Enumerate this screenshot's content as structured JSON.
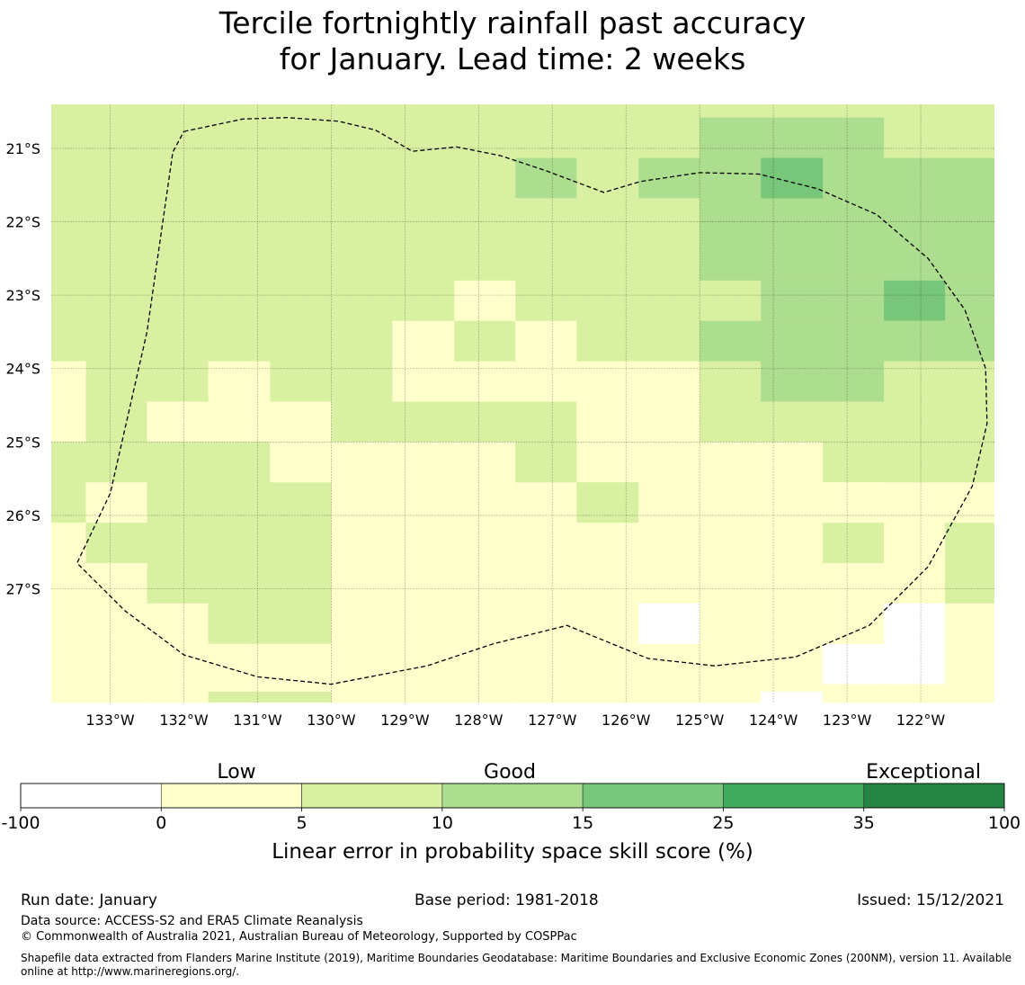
{
  "title": {
    "line1": "Tercile fortnightly rainfall past accuracy",
    "line2": "for January. Lead time: 2 weeks"
  },
  "chart_data": {
    "type": "heatmap",
    "title": "Tercile fortnightly rainfall past accuracy for January. Lead time: 2 weeks",
    "xlabel": "",
    "ylabel": "",
    "lon_range": [
      -133.8,
      -121.0
    ],
    "lat_range": [
      -20.4,
      -28.55
    ],
    "x_ticks": [
      {
        "value": -133,
        "label": "133°W"
      },
      {
        "value": -132,
        "label": "132°W"
      },
      {
        "value": -131,
        "label": "131°W"
      },
      {
        "value": -130,
        "label": "130°W"
      },
      {
        "value": -129,
        "label": "129°W"
      },
      {
        "value": -128,
        "label": "128°W"
      },
      {
        "value": -127,
        "label": "127°W"
      },
      {
        "value": -126,
        "label": "126°W"
      },
      {
        "value": -125,
        "label": "125°W"
      },
      {
        "value": -124,
        "label": "124°W"
      },
      {
        "value": -123,
        "label": "123°W"
      },
      {
        "value": -122,
        "label": "122°W"
      }
    ],
    "y_ticks": [
      {
        "value": -21,
        "label": "21°S"
      },
      {
        "value": -22,
        "label": "22°S"
      },
      {
        "value": -23,
        "label": "23°S"
      },
      {
        "value": -24,
        "label": "24°S"
      },
      {
        "value": -25,
        "label": "25°S"
      },
      {
        "value": -26,
        "label": "26°S"
      },
      {
        "value": -27,
        "label": "27°S"
      }
    ],
    "grid": true,
    "note": "Cells are 5/6 degree squares; value codes: 0 = -100 to 0, 1 = 0-5, 2 = 5-10, 3 = 10-15, 4 = 15-25, 5 = 25-35, 6 = 35-100",
    "cell_size_deg": 0.8333,
    "grid_origin": {
      "lon": -133.8,
      "lat": -20.4
    },
    "cells": [
      [
        2,
        2,
        2,
        2,
        2,
        2,
        2,
        2,
        2,
        2,
        2,
        2,
        2,
        2,
        2,
        2,
        2,
        2,
        2,
        2,
        2,
        2,
        2,
        2,
        2,
        2,
        2,
        2,
        2,
        2,
        2,
        2,
        2,
        2,
        2,
        2,
        2,
        2,
        2,
        2,
        2,
        2,
        2,
        2,
        2,
        2,
        2,
        2,
        2,
        2,
        2,
        2,
        2,
        2,
        2,
        2,
        2,
        2,
        2,
        2,
        2,
        2,
        2,
        2,
        2,
        2,
        2,
        2,
        2,
        2,
        2,
        2,
        2,
        2,
        2,
        2,
        2,
        2,
        2,
        2
      ],
      [
        2,
        2,
        2,
        2,
        2,
        2,
        2,
        2,
        2,
        2,
        2,
        2,
        2,
        2,
        2,
        2,
        2,
        2,
        2,
        2,
        2,
        2,
        2,
        2,
        2,
        2,
        2,
        2,
        2,
        2,
        2,
        2,
        2,
        2,
        2,
        2,
        2,
        2,
        2,
        2,
        2,
        2,
        2,
        2,
        2,
        2,
        2,
        2,
        2,
        2,
        2,
        2,
        2,
        2,
        2,
        2,
        2,
        2,
        2,
        2,
        2,
        2,
        2,
        2,
        2,
        2,
        2,
        2,
        2,
        2,
        2,
        2,
        2,
        2,
        2,
        2,
        2,
        2,
        2,
        2
      ]
    ],
    "cell_rects": [
      {
        "lon0": -133.8,
        "lon1": -121.0,
        "lat0": -20.4,
        "lat1": -28.55,
        "v": 2
      },
      {
        "lon0": -125.0,
        "lon1": -122.5,
        "lat0": -20.58,
        "lat1": -21.13,
        "v": 3
      },
      {
        "lon0": -125.0,
        "lon1": -121.0,
        "lat0": -21.13,
        "lat1": -22.8,
        "v": 3
      },
      {
        "lon0": -127.5,
        "lon1": -126.67,
        "lat0": -21.13,
        "lat1": -21.68,
        "v": 3
      },
      {
        "lon0": -125.83,
        "lon1": -125.0,
        "lat0": -21.13,
        "lat1": -21.68,
        "v": 3
      },
      {
        "lon0": -124.17,
        "lon1": -123.33,
        "lat0": -21.13,
        "lat1": -21.68,
        "v": 4
      },
      {
        "lon0": -124.17,
        "lon1": -121.0,
        "lat0": -22.8,
        "lat1": -23.35,
        "v": 3
      },
      {
        "lon0": -122.5,
        "lon1": -121.67,
        "lat0": -22.8,
        "lat1": -23.35,
        "v": 4
      },
      {
        "lon0": -125.0,
        "lon1": -121.0,
        "lat0": -23.35,
        "lat1": -23.9,
        "v": 3
      },
      {
        "lon0": -124.17,
        "lon1": -122.5,
        "lat0": -23.9,
        "lat1": -24.45,
        "v": 3
      },
      {
        "lon0": -128.33,
        "lon1": -127.5,
        "lat0": -22.8,
        "lat1": -23.35,
        "v": 1
      },
      {
        "lon0": -129.17,
        "lon1": -128.33,
        "lat0": -23.35,
        "lat1": -23.9,
        "v": 1
      },
      {
        "lon0": -127.5,
        "lon1": -126.67,
        "lat0": -23.35,
        "lat1": -23.9,
        "v": 1
      },
      {
        "lon0": -129.17,
        "lon1": -125.0,
        "lat0": -23.9,
        "lat1": -24.45,
        "v": 1
      },
      {
        "lon0": -133.8,
        "lon1": -133.33,
        "lat0": -23.9,
        "lat1": -25.0,
        "v": 1
      },
      {
        "lon0": -131.67,
        "lon1": -130.83,
        "lat0": -23.9,
        "lat1": -24.45,
        "v": 1
      },
      {
        "lon0": -132.5,
        "lon1": -130.0,
        "lat0": -24.45,
        "lat1": -25.0,
        "v": 1
      },
      {
        "lon0": -126.67,
        "lon1": -125.0,
        "lat0": -24.45,
        "lat1": -25.0,
        "v": 1
      },
      {
        "lon0": -130.83,
        "lon1": -130.0,
        "lat0": -25.0,
        "lat1": -25.55,
        "v": 1
      },
      {
        "lon0": -130.0,
        "lon1": -127.5,
        "lat0": -25.0,
        "lat1": -28.55,
        "v": 1
      },
      {
        "lon0": -126.67,
        "lon1": -123.33,
        "lat0": -25.0,
        "lat1": -25.55,
        "v": 1
      },
      {
        "lon0": -127.5,
        "lon1": -121.0,
        "lat0": -25.55,
        "lat1": -28.55,
        "v": 1
      },
      {
        "lon0": -133.33,
        "lon1": -132.5,
        "lat0": -25.55,
        "lat1": -26.1,
        "v": 1
      },
      {
        "lon0": -123.33,
        "lon1": -122.5,
        "lat0": -25.55,
        "lat1": -26.1,
        "v": 1
      },
      {
        "lon0": -133.8,
        "lon1": -133.33,
        "lat0": -26.1,
        "lat1": -28.55,
        "v": 1
      },
      {
        "lon0": -133.33,
        "lon1": -132.5,
        "lat0": -26.65,
        "lat1": -28.55,
        "v": 1
      },
      {
        "lon0": -132.5,
        "lon1": -131.67,
        "lat0": -27.2,
        "lat1": -28.55,
        "v": 1
      },
      {
        "lon0": -131.67,
        "lon1": -130.0,
        "lat0": -27.75,
        "lat1": -28.55,
        "v": 1
      },
      {
        "lon0": -127.5,
        "lon1": -126.67,
        "lat0": -25.0,
        "lat1": -25.55,
        "v": 2
      },
      {
        "lon0": -126.67,
        "lon1": -125.83,
        "lat0": -25.55,
        "lat1": -26.1,
        "v": 2
      },
      {
        "lon0": -123.33,
        "lon1": -122.5,
        "lat0": -26.1,
        "lat1": -26.65,
        "v": 2
      },
      {
        "lon0": -121.67,
        "lon1": -121.0,
        "lat0": -26.1,
        "lat1": -27.2,
        "v": 2
      },
      {
        "lon0": -125.83,
        "lon1": -125.0,
        "lat0": -27.2,
        "lat1": -27.75,
        "v": 0
      },
      {
        "lon0": -122.5,
        "lon1": -121.67,
        "lat0": -27.2,
        "lat1": -28.3,
        "v": 0
      },
      {
        "lon0": -123.33,
        "lon1": -122.5,
        "lat0": -27.75,
        "lat1": -28.3,
        "v": 0
      },
      {
        "lon0": -124.17,
        "lon1": -123.33,
        "lat0": -28.4,
        "lat1": -28.55,
        "v": 0
      },
      {
        "lon0": -131.67,
        "lon1": -130.0,
        "lat0": -28.4,
        "lat1": -28.55,
        "v": 2
      }
    ],
    "eez_boundary": [
      [
        -132.0,
        -20.77
      ],
      [
        -131.2,
        -20.6
      ],
      [
        -130.6,
        -20.58
      ],
      [
        -129.9,
        -20.63
      ],
      [
        -129.4,
        -20.75
      ],
      [
        -128.9,
        -21.04
      ],
      [
        -128.3,
        -20.98
      ],
      [
        -127.7,
        -21.1
      ],
      [
        -127.1,
        -21.3
      ],
      [
        -126.3,
        -21.6
      ],
      [
        -125.8,
        -21.45
      ],
      [
        -125.0,
        -21.33
      ],
      [
        -124.2,
        -21.35
      ],
      [
        -123.4,
        -21.55
      ],
      [
        -122.6,
        -21.9
      ],
      [
        -121.9,
        -22.5
      ],
      [
        -121.4,
        -23.2
      ],
      [
        -121.12,
        -24.0
      ],
      [
        -121.1,
        -24.75
      ],
      [
        -121.3,
        -25.6
      ],
      [
        -121.9,
        -26.7
      ],
      [
        -122.7,
        -27.5
      ],
      [
        -123.7,
        -27.93
      ],
      [
        -124.8,
        -28.05
      ],
      [
        -125.7,
        -27.95
      ],
      [
        -126.8,
        -27.5
      ],
      [
        -127.8,
        -27.75
      ],
      [
        -128.7,
        -28.05
      ],
      [
        -130.0,
        -28.3
      ],
      [
        -131.0,
        -28.2
      ],
      [
        -132.0,
        -27.9
      ],
      [
        -132.8,
        -27.3
      ],
      [
        -133.45,
        -26.65
      ],
      [
        -133.0,
        -25.7
      ],
      [
        -132.5,
        -23.5
      ],
      [
        -132.15,
        -21.05
      ],
      [
        -132.0,
        -20.77
      ]
    ],
    "colorbar": {
      "label": "Linear error in probability space skill score (%)",
      "boundaries": [
        "-100",
        "0",
        "5",
        "10",
        "15",
        "25",
        "35",
        "100"
      ],
      "colors": [
        "#ffffff",
        "#ffffcc",
        "#d9f0a3",
        "#addd8e",
        "#78c679",
        "#41ab5d",
        "#238443"
      ],
      "category_labels": [
        "Low",
        "Good",
        "Exceptional"
      ]
    }
  },
  "footer": {
    "run_date": "Run date: January",
    "base_period": "Base period: 1981-2018",
    "issued": "Issued: 15/12/2021",
    "data_source": "Data source: ACCESS-S2 and ERA5 Climate Reanalysis",
    "copyright": "© Commonwealth of Australia 2021, Australian Bureau of Meteorology, Supported by COSPPac",
    "shapefile": "Shapefile data extracted from Flanders Marine Institute (2019), Maritime Boundaries Geodatabase: Maritime Boundaries and Exclusive Economic Zones (200NM), version 11. Available online at http://www.marineregions.org/."
  }
}
